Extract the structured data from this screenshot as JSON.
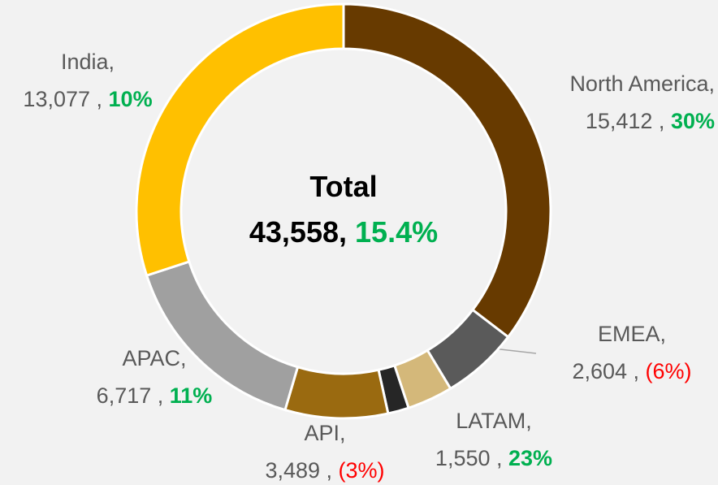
{
  "chart_data": {
    "type": "donut",
    "categories": [
      "North America,",
      "EMEA,",
      "LATAM,",
      null,
      "API,",
      "APAC,",
      "India,"
    ],
    "values": [
      15412,
      2604,
      1550,
      709,
      3489,
      6717,
      13077
    ],
    "value_labels": [
      "15,412 ,",
      "2,604 ,",
      "1,550 ,",
      null,
      "3,489 ,",
      "6,717 ,",
      "13,077 ,"
    ],
    "growth": [
      30,
      -6,
      23,
      null,
      -3,
      11,
      10
    ],
    "growth_labels": [
      "30%",
      "(6%)",
      "23%",
      null,
      "(3%)",
      "11%",
      "10%"
    ],
    "colors": [
      "#673a00",
      "#5a5a5a",
      "#d4b87a",
      "#262626",
      "#9a6a10",
      "#a0a0a0",
      "#ffc000"
    ],
    "positive_color": "#00b050",
    "negative_color": "#ff0000",
    "total_title": "Total",
    "total": 43558,
    "total_label": "43,558,",
    "total_growth": 15.4,
    "total_growth_label": "15.4%"
  }
}
